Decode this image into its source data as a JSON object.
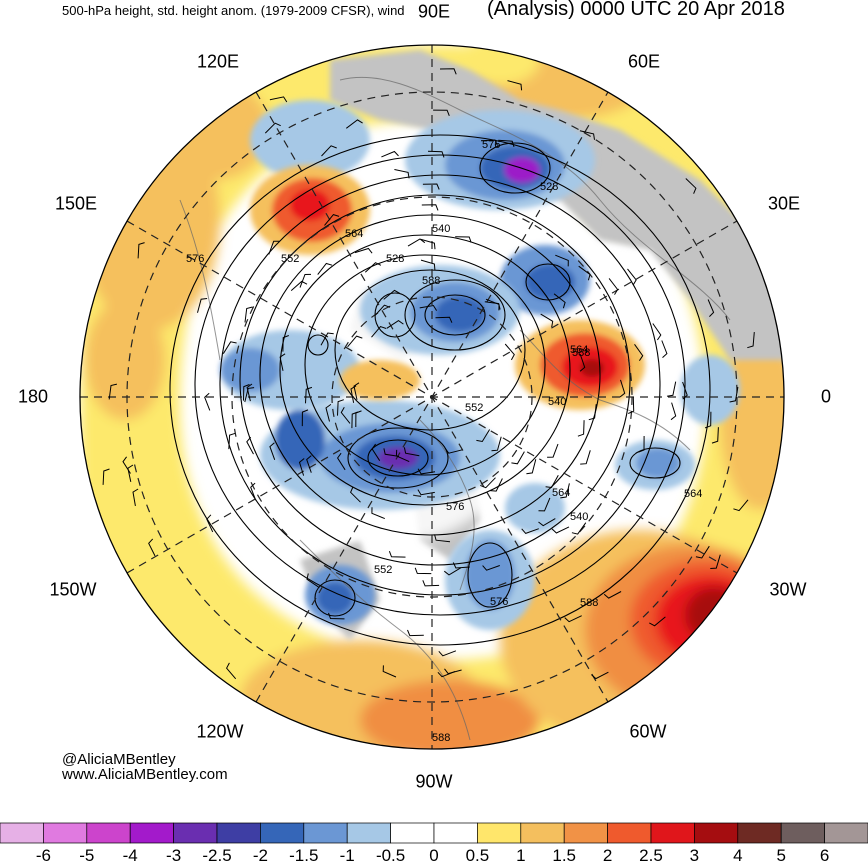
{
  "header": {
    "product": "500-hPa height, std. height anom. (1979-2009 CFSR), wind",
    "valid": "(Analysis) 0000 UTC 20 Apr 2018"
  },
  "longitude_labels": {
    "e90": "90E",
    "e60": "60E",
    "e30": "30E",
    "zero": "0",
    "w30": "30W",
    "w60": "60W",
    "w90": "90W",
    "w120": "120W",
    "w150": "150W",
    "d180": "180",
    "e150": "150E",
    "e120": "120E"
  },
  "contour_labels": [
    "576",
    "564",
    "552",
    "540",
    "528",
    "588",
    "576",
    "564",
    "528",
    "552",
    "540",
    "564",
    "540",
    "576",
    "564",
    "552",
    "576",
    "588",
    "588",
    "588"
  ],
  "credits": {
    "handle": "@AliciaMBentley",
    "site": "www.AliciaMBentley.com"
  },
  "colorbar": {
    "ticks": [
      "-6",
      "-5",
      "-4",
      "-3",
      "-2.5",
      "-2",
      "-1.5",
      "-1",
      "-0.5",
      "0",
      "0.5",
      "1",
      "1.5",
      "2",
      "2.5",
      "3",
      "4",
      "5",
      "6"
    ],
    "colors": [
      "#e6b0e6",
      "#e07ae0",
      "#cc44cc",
      "#a31acb",
      "#6a2eb0",
      "#3e3ea4",
      "#3566b8",
      "#6b97d4",
      "#a6c8e6",
      "#ffffff",
      "#ffffff",
      "#ffe66b",
      "#f4bf5e",
      "#f19246",
      "#ef5a2d",
      "#e0161b",
      "#a50d10",
      "#6e2a23",
      "#6e5e5e",
      "#a39696"
    ]
  },
  "map_colors": {
    "land_gray": "#c3c3c3",
    "yellow": "#fde96c",
    "orange": "#f5c05d",
    "dark_orange": "#f08e42",
    "red": "#e8191c",
    "dark_red": "#a70c10",
    "light_blue": "#a6c8e6",
    "mid_blue": "#6b97d4",
    "blue": "#3566b8",
    "purple": "#9c1fc8"
  },
  "icons": {
    "wind_barb": "wind-barb-icon",
    "globe": "polar-stereographic-map"
  }
}
